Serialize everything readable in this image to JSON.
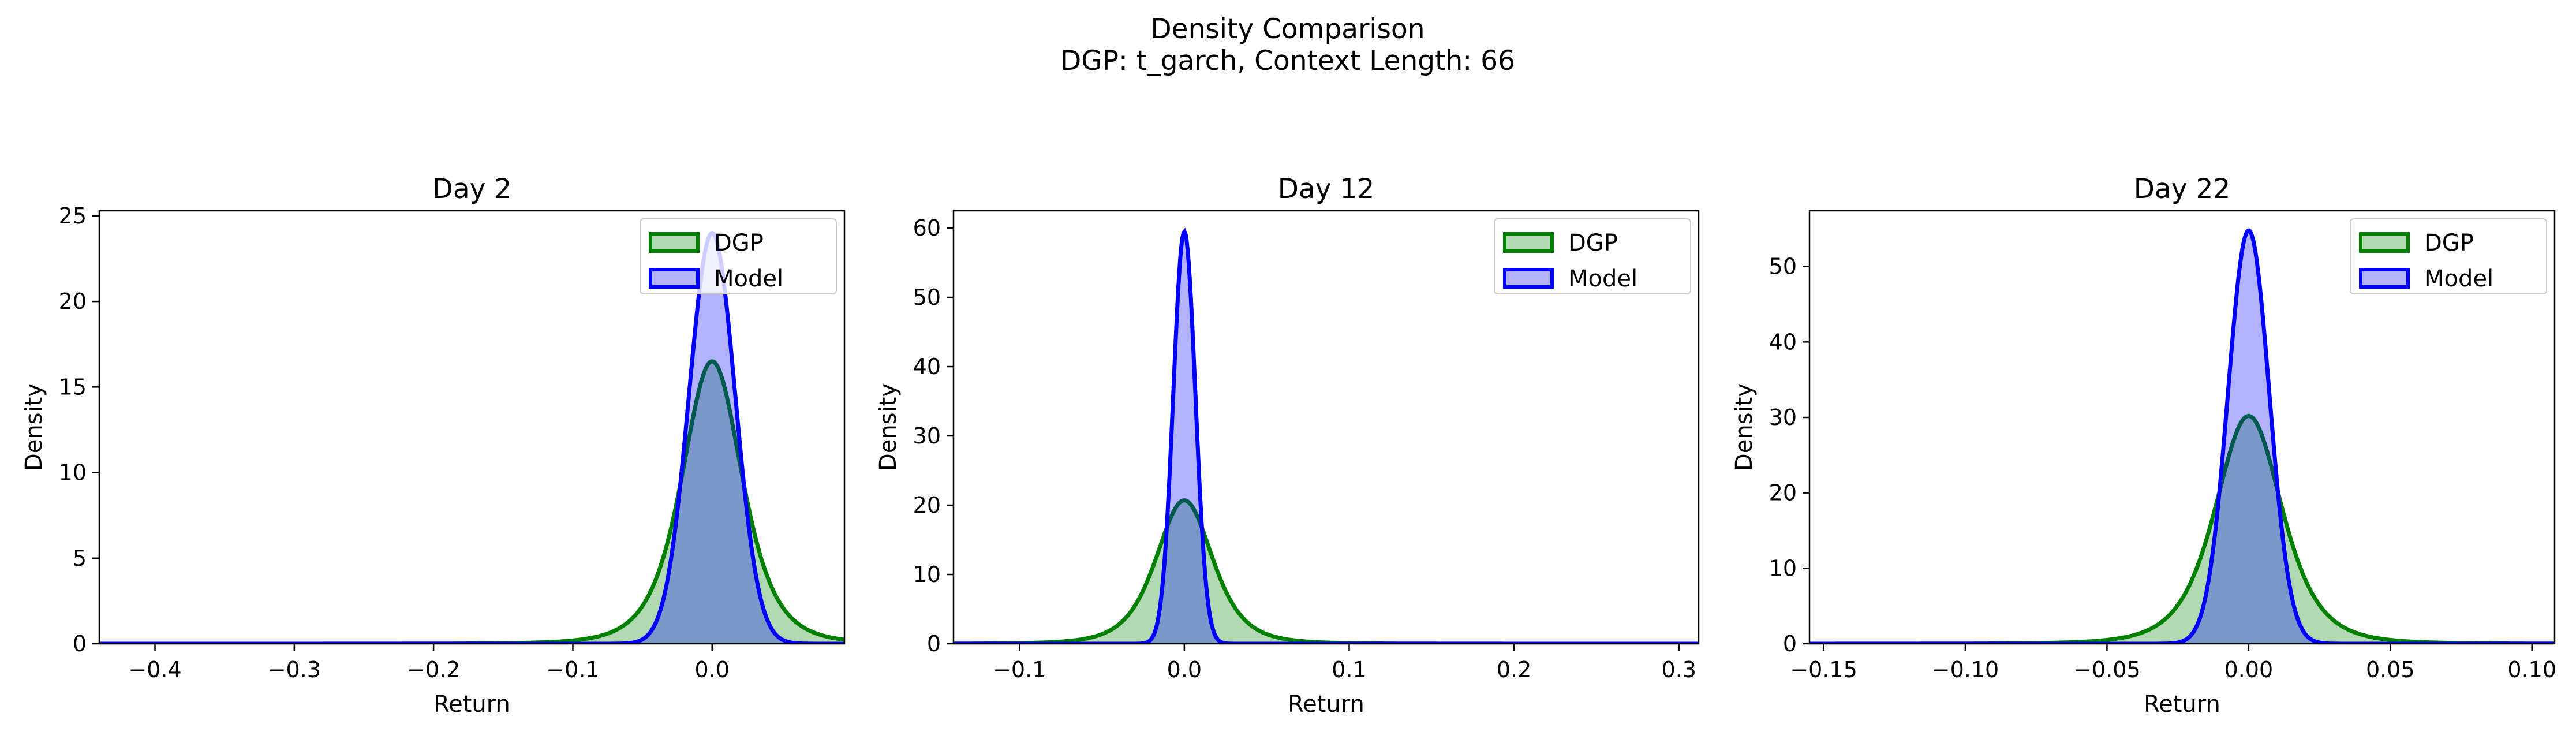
{
  "figure": {
    "title": "Density Comparison",
    "subtitle": "DGP: t_garch, Context Length: 66"
  },
  "colors": {
    "dgp_line": "#008000",
    "dgp_fill": "#008000",
    "model_line": "#0000ff",
    "model_fill": "#0000ff",
    "fill_opacity": 0.3
  },
  "chart_data": [
    {
      "type": "area",
      "title": "Day 2",
      "xlabel": "Return",
      "ylabel": "Density",
      "xlim": [
        -0.44,
        0.095
      ],
      "ylim": [
        0,
        25.3
      ],
      "xticks": [
        -0.4,
        -0.3,
        -0.2,
        -0.1,
        0.0
      ],
      "xtick_labels": [
        "−0.4",
        "−0.3",
        "−0.2",
        "−0.1",
        "0.0"
      ],
      "yticks": [
        0,
        5,
        10,
        15,
        20,
        25
      ],
      "ytick_labels": [
        "0",
        "5",
        "10",
        "15",
        "20",
        "25"
      ],
      "legend": {
        "position": "upper right",
        "entries": [
          "DGP",
          "Model"
        ]
      },
      "series": [
        {
          "name": "DGP",
          "density": "t",
          "loc": 0.0,
          "peak": 16.5,
          "nu": 4,
          "scale": 0.0225
        },
        {
          "name": "Model",
          "density": "normal",
          "loc": 0.0,
          "peak": 24.0,
          "sigma": 0.0166
        }
      ]
    },
    {
      "type": "area",
      "title": "Day 12",
      "xlabel": "Return",
      "ylabel": "Density",
      "xlim": [
        -0.14,
        0.312
      ],
      "ylim": [
        0,
        62.5
      ],
      "xticks": [
        -0.1,
        0.0,
        0.1,
        0.2,
        0.3
      ],
      "xtick_labels": [
        "−0.1",
        "0.0",
        "0.1",
        "0.2",
        "0.3"
      ],
      "yticks": [
        0,
        10,
        20,
        30,
        40,
        50,
        60
      ],
      "ytick_labels": [
        "0",
        "10",
        "20",
        "30",
        "40",
        "50",
        "60"
      ],
      "legend": {
        "position": "upper right",
        "entries": [
          "DGP",
          "Model"
        ]
      },
      "series": [
        {
          "name": "DGP",
          "density": "t",
          "loc": 0.0,
          "peak": 20.7,
          "nu": 4,
          "scale": 0.0179
        },
        {
          "name": "Model",
          "density": "normal",
          "loc": 0.0,
          "peak": 59.5,
          "sigma": 0.0067
        }
      ]
    },
    {
      "type": "area",
      "title": "Day 22",
      "xlabel": "Return",
      "ylabel": "Density",
      "xlim": [
        -0.155,
        0.108
      ],
      "ylim": [
        0,
        57.4
      ],
      "xticks": [
        -0.15,
        -0.1,
        -0.05,
        0.0,
        0.05,
        0.1
      ],
      "xtick_labels": [
        "−0.15",
        "−0.10",
        "−0.05",
        "0.00",
        "0.05",
        "0.10"
      ],
      "yticks": [
        0,
        10,
        20,
        30,
        40,
        50
      ],
      "ytick_labels": [
        "0",
        "10",
        "20",
        "30",
        "40",
        "50"
      ],
      "legend": {
        "position": "upper right",
        "entries": [
          "DGP",
          "Model"
        ]
      },
      "series": [
        {
          "name": "DGP",
          "density": "t",
          "loc": 0.0,
          "peak": 30.2,
          "nu": 4,
          "scale": 0.0123
        },
        {
          "name": "Model",
          "density": "normal",
          "loc": 0.0,
          "peak": 54.8,
          "sigma": 0.0073
        }
      ]
    }
  ]
}
